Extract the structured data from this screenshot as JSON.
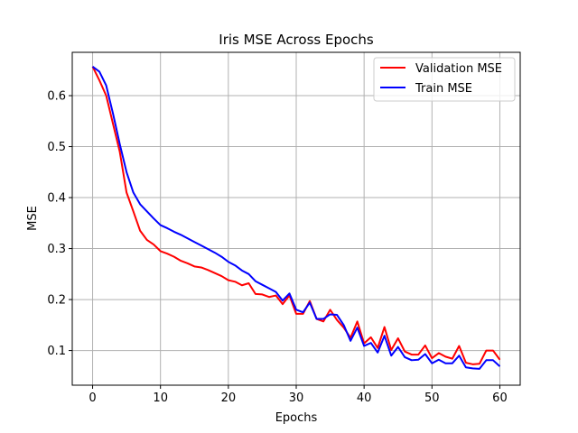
{
  "chart_data": {
    "type": "line",
    "title": "Iris MSE Across Epochs",
    "xlabel": "Epochs",
    "ylabel": "MSE",
    "xlim": [
      -3,
      63
    ],
    "ylim": [
      0.032,
      0.685
    ],
    "xticks": [
      0,
      10,
      20,
      30,
      40,
      50,
      60
    ],
    "yticks": [
      0.1,
      0.2,
      0.3,
      0.4,
      0.5,
      0.6
    ],
    "grid": true,
    "legend_position": "top-right",
    "series": [
      {
        "name": "Validation MSE",
        "color": "#ff0000",
        "x": [
          0,
          1,
          2,
          3,
          4,
          5,
          6,
          7,
          8,
          9,
          10,
          11,
          12,
          13,
          14,
          15,
          16,
          17,
          18,
          19,
          20,
          21,
          22,
          23,
          24,
          25,
          26,
          27,
          28,
          29,
          30,
          31,
          32,
          33,
          34,
          35,
          36,
          37,
          38,
          39,
          40,
          41,
          42,
          43,
          44,
          45,
          46,
          47,
          48,
          49,
          50,
          51,
          52,
          53,
          54,
          55,
          56,
          57,
          58,
          59,
          60
        ],
        "values": [
          0.657,
          0.63,
          0.6,
          0.545,
          0.49,
          0.41,
          0.373,
          0.335,
          0.317,
          0.308,
          0.295,
          0.29,
          0.284,
          0.276,
          0.271,
          0.265,
          0.263,
          0.258,
          0.252,
          0.246,
          0.238,
          0.235,
          0.228,
          0.232,
          0.211,
          0.21,
          0.205,
          0.208,
          0.191,
          0.208,
          0.172,
          0.172,
          0.197,
          0.162,
          0.157,
          0.18,
          0.16,
          0.145,
          0.125,
          0.157,
          0.114,
          0.126,
          0.105,
          0.146,
          0.101,
          0.124,
          0.098,
          0.092,
          0.092,
          0.11,
          0.085,
          0.095,
          0.088,
          0.084,
          0.109,
          0.076,
          0.073,
          0.074,
          0.1,
          0.1,
          0.082
        ]
      },
      {
        "name": "Train MSE",
        "color": "#0000ff",
        "x": [
          0,
          1,
          2,
          3,
          4,
          5,
          6,
          7,
          8,
          9,
          10,
          11,
          12,
          13,
          14,
          15,
          16,
          17,
          18,
          19,
          20,
          21,
          22,
          23,
          24,
          25,
          26,
          27,
          28,
          29,
          30,
          31,
          32,
          33,
          34,
          35,
          36,
          37,
          38,
          39,
          40,
          41,
          42,
          43,
          44,
          45,
          46,
          47,
          48,
          49,
          50,
          51,
          52,
          53,
          54,
          55,
          56,
          57,
          58,
          59,
          60
        ],
        "values": [
          0.657,
          0.647,
          0.62,
          0.565,
          0.505,
          0.45,
          0.41,
          0.387,
          0.373,
          0.359,
          0.346,
          0.34,
          0.333,
          0.327,
          0.32,
          0.313,
          0.306,
          0.299,
          0.292,
          0.284,
          0.274,
          0.267,
          0.257,
          0.25,
          0.236,
          0.229,
          0.222,
          0.215,
          0.198,
          0.212,
          0.18,
          0.175,
          0.194,
          0.162,
          0.162,
          0.171,
          0.17,
          0.15,
          0.119,
          0.145,
          0.109,
          0.115,
          0.096,
          0.129,
          0.09,
          0.107,
          0.087,
          0.081,
          0.082,
          0.093,
          0.075,
          0.082,
          0.075,
          0.075,
          0.09,
          0.067,
          0.065,
          0.064,
          0.081,
          0.081,
          0.069
        ]
      }
    ]
  }
}
